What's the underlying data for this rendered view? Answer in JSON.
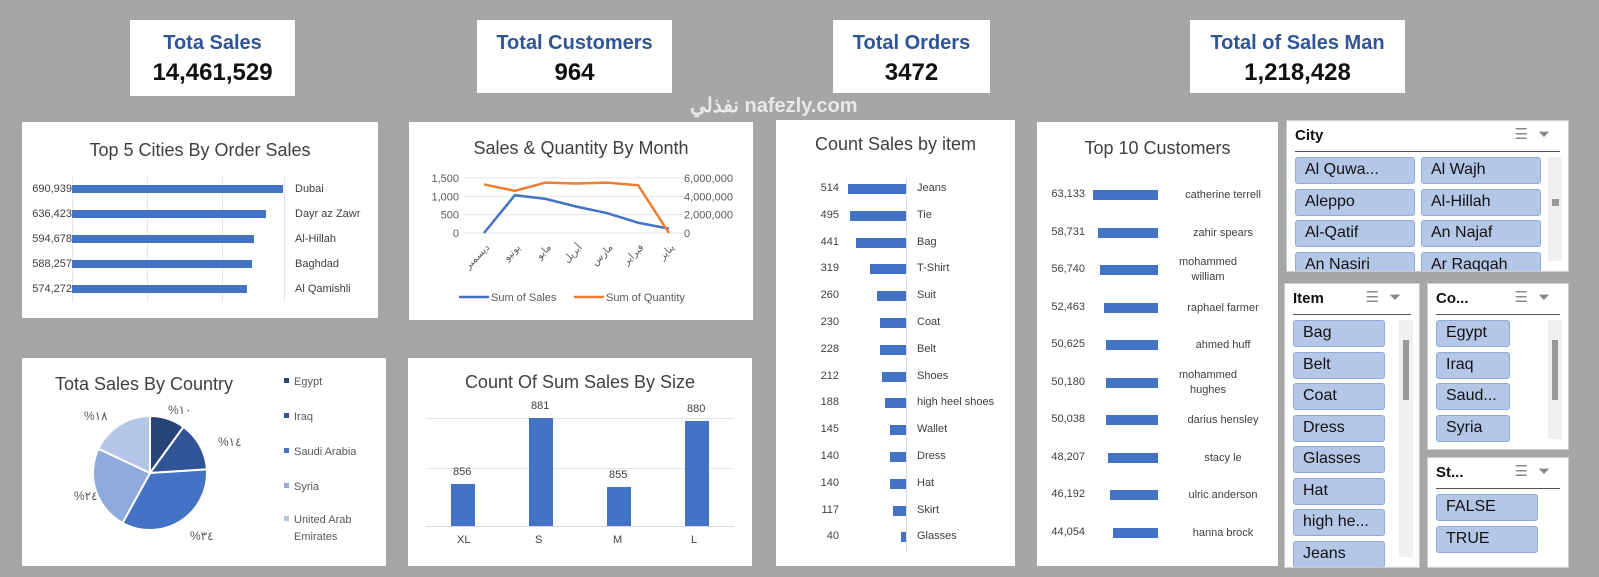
{
  "kpis": [
    {
      "title": "Tota Sales",
      "value": "14,461,529"
    },
    {
      "title": "Total Customers",
      "value": "964"
    },
    {
      "title": "Total Orders",
      "value": "3472"
    },
    {
      "title": "Total of Sales Man",
      "value": "1,218,428"
    }
  ],
  "chart_data": [
    {
      "type": "bar",
      "title": "Top 5 Cities By Order Sales",
      "orientation": "horizontal",
      "categories": [
        "Dubai",
        "Dayr az Zawr",
        "Al-Hillah",
        "Baghdad",
        "Al Qamishli"
      ],
      "values": [
        690939,
        636423,
        594678,
        588257,
        574272
      ],
      "value_labels": [
        "690,939",
        "636,423",
        "594,678",
        "588,257",
        "574,272"
      ]
    },
    {
      "type": "line",
      "title": "Sales & Quantity By Month",
      "categories": [
        "ديسمبر",
        "يونيو",
        "مايو",
        "أبريل",
        "مارس",
        "فبراير",
        "يناير"
      ],
      "series": [
        {
          "name": "Sum of Sales",
          "axis": "left",
          "color": "#4472c4",
          "values": [
            0,
            1030,
            930,
            720,
            540,
            280,
            120
          ]
        },
        {
          "name": "Sum of Quantity",
          "axis": "right",
          "color": "#ed7d31",
          "values": [
            5300000,
            4600000,
            5500000,
            5400000,
            5500000,
            5200000,
            0
          ]
        }
      ],
      "left_ticks": [
        "0",
        "500",
        "1,000",
        "1,500"
      ],
      "right_ticks": [
        "0",
        "2,000,000",
        "4,000,000",
        "6,000,000"
      ],
      "ylim_left": [
        0,
        1500
      ],
      "ylim_right": [
        0,
        6000000
      ]
    },
    {
      "type": "pie",
      "title": "Tota Sales By Country",
      "categories": [
        "Egypt",
        "Iraq",
        "Saudi Arabia",
        "Syria",
        "United Arab Emirates"
      ],
      "values": [
        10,
        14,
        34,
        24,
        18
      ],
      "value_labels": [
        "%١٠",
        "%١٤",
        "%٣٤",
        "%٢٤",
        "%١٨"
      ],
      "colors": [
        "#264478",
        "#2f5597",
        "#4472c4",
        "#8faadc",
        "#b4c7e7"
      ]
    },
    {
      "type": "bar",
      "title": "Count Of Sum Sales By Size",
      "categories": [
        "XL",
        "S",
        "M",
        "L"
      ],
      "values": [
        856,
        881,
        855,
        880
      ],
      "ylim": [
        840,
        885
      ]
    },
    {
      "type": "bar",
      "title": "Count Sales by item",
      "orientation": "horizontal",
      "categories": [
        "Jeans",
        "Tie",
        "Bag",
        "T-Shirt",
        "Suit",
        "Coat",
        "Belt",
        "Shoes",
        "high heel shoes",
        "Wallet",
        "Dress",
        "Hat",
        "Skirt",
        "Glasses"
      ],
      "values": [
        514,
        495,
        441,
        319,
        260,
        230,
        228,
        212,
        188,
        145,
        140,
        140,
        117,
        40
      ]
    },
    {
      "type": "bar",
      "title": "Top 10 Customers",
      "orientation": "horizontal",
      "categories": [
        "catherine terrell",
        "zahir spears",
        "mohammed william",
        "raphael farmer",
        "ahmed huff",
        "mohammed hughes",
        "darius hensley",
        "stacy le",
        "ulric anderson",
        "hanna brock"
      ],
      "values": [
        63133,
        58731,
        56740,
        52463,
        50625,
        50180,
        50038,
        48207,
        46192,
        44054
      ],
      "value_labels": [
        "63,133",
        "58,731",
        "56,740",
        "52,463",
        "50,625",
        "50,180",
        "50,038",
        "48,207",
        "46,192",
        "44,054"
      ]
    }
  ],
  "slicers": {
    "city": {
      "title": "City",
      "items": [
        "Al Quwa...",
        "Al Wajh",
        "Aleppo",
        "Al-Hillah",
        "Al-Qatif",
        "An Najaf",
        "An Nasiri",
        "Ar Raqqah"
      ]
    },
    "item": {
      "title": "Item",
      "items": [
        "Bag",
        "Belt",
        "Coat",
        "Dress",
        "Glasses",
        "Hat",
        "high he...",
        "Jeans"
      ]
    },
    "country": {
      "title": "Co...",
      "items": [
        "Egypt",
        "Iraq",
        "Saud...",
        "Syria"
      ]
    },
    "status": {
      "title": "St...",
      "items": [
        "FALSE",
        "TRUE"
      ]
    }
  },
  "watermark": "نفذلي nafezly.com"
}
